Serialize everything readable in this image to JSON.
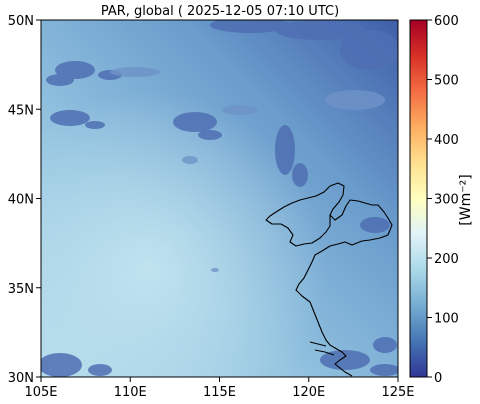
{
  "map": {
    "title": "PAR, global ( 2025-12-05 07:10 UTC)",
    "lat_ticks": [
      {
        "value": 50,
        "label": "50N"
      },
      {
        "value": 45,
        "label": "45N"
      },
      {
        "value": 40,
        "label": "40N"
      },
      {
        "value": 35,
        "label": "35N"
      },
      {
        "value": 30,
        "label": "30N"
      }
    ],
    "lon_ticks": [
      {
        "value": 105,
        "label": "105E"
      },
      {
        "value": 110,
        "label": "110E"
      },
      {
        "value": 115,
        "label": "115E"
      },
      {
        "value": 120,
        "label": "120E"
      },
      {
        "value": 125,
        "label": "125E"
      }
    ],
    "extent": {
      "lon_min": 105,
      "lon_max": 125,
      "lat_min": 30,
      "lat_max": 50
    },
    "coastline_color": "#000000"
  },
  "colorbar": {
    "label": "[Wm⁻²]",
    "range": [
      0,
      600
    ],
    "ticks": [
      {
        "value": 600,
        "label": "600"
      },
      {
        "value": 500,
        "label": "500"
      },
      {
        "value": 400,
        "label": "400"
      },
      {
        "value": 300,
        "label": "300"
      },
      {
        "value": 200,
        "label": "200"
      },
      {
        "value": 100,
        "label": "100"
      },
      {
        "value": 0,
        "label": "0"
      }
    ],
    "colormap": "RdYlBu_r",
    "stops": [
      "#313695",
      "#4575b4",
      "#74add1",
      "#abd9e9",
      "#e0f3f8",
      "#ffffbf",
      "#fee090",
      "#fdae61",
      "#f46d43",
      "#d73027",
      "#a50026"
    ]
  }
}
